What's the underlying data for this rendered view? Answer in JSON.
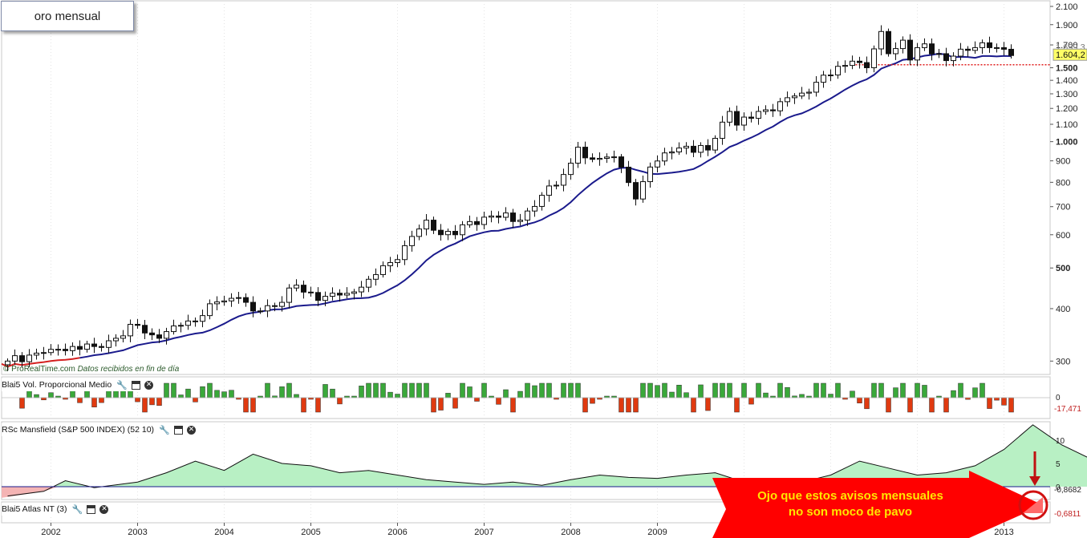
{
  "title": "oro mensual",
  "credit": {
    "source": "© ProRealTime.com",
    "note": "Datos recibidos en fin de día"
  },
  "colors": {
    "up": "#ffffff",
    "down": "#111111",
    "ma": "#1a1a8c",
    "ma_red": "#d42020",
    "vol_up": "#3aa83a",
    "vol_down": "#e03a10",
    "rsc_fill": "#b8f0c4",
    "callout": "#ff0000",
    "callout_text": "#ffe600"
  },
  "panels": {
    "volume": {
      "label": "Blai5 Vol. Proporcional Medio",
      "zero_tick": "0",
      "last_value": "-17,471"
    },
    "mansfield": {
      "label": "RSc Mansfield (S&P 500 INDEX) (52 10)",
      "ticks": [
        "10",
        "5",
        "0"
      ],
      "last_value": "-0,8682"
    },
    "atlas": {
      "label": "Blai5 Atlas NT (3)",
      "last_value": "-0,6811"
    }
  },
  "callout": {
    "line1": "Ojo que estos avisos mensuales",
    "line2": "no son moco de pavo"
  },
  "price_labels": {
    "last": "1.604,2",
    "ma_value": "1.659,3",
    "support": "1.525"
  },
  "chart_data": {
    "type": "candlestick",
    "title": "oro mensual",
    "scale": "log",
    "ylim": [
      285,
      2100
    ],
    "y_ticks": [
      {
        "v": 2100,
        "label": "2.100",
        "bold": false
      },
      {
        "v": 1900,
        "label": "1.900",
        "bold": false
      },
      {
        "v": 1700,
        "label": "1.700",
        "bold": false
      },
      {
        "v": 1500,
        "label": "1.500",
        "bold": true
      },
      {
        "v": 1400,
        "label": "1.400",
        "bold": false
      },
      {
        "v": 1300,
        "label": "1.300",
        "bold": false
      },
      {
        "v": 1200,
        "label": "1.200",
        "bold": false
      },
      {
        "v": 1100,
        "label": "1.100",
        "bold": false
      },
      {
        "v": 1000,
        "label": "1.000",
        "bold": true
      },
      {
        "v": 900,
        "label": "900",
        "bold": false
      },
      {
        "v": 800,
        "label": "800",
        "bold": false
      },
      {
        "v": 700,
        "label": "700",
        "bold": false
      },
      {
        "v": 600,
        "label": "600",
        "bold": false
      },
      {
        "v": 500,
        "label": "500",
        "bold": true
      },
      {
        "v": 400,
        "label": "400",
        "bold": false
      },
      {
        "v": 300,
        "label": "300",
        "bold": false
      }
    ],
    "x_labels": [
      "2002",
      "2003",
      "2004",
      "2005",
      "2006",
      "2007",
      "2008",
      "2009",
      "2010",
      "2011",
      "2012",
      "2013"
    ],
    "start": "2001-07",
    "anchors": [
      [
        "2001-07",
        300
      ],
      [
        "2001-10",
        310
      ],
      [
        "2002-01",
        320
      ],
      [
        "2002-04",
        325
      ],
      [
        "2002-07",
        325
      ],
      [
        "2002-10",
        340
      ],
      [
        "2003-01",
        365
      ],
      [
        "2003-02",
        350
      ],
      [
        "2003-04",
        340
      ],
      [
        "2003-07",
        365
      ],
      [
        "2003-10",
        385
      ],
      [
        "2003-12",
        415
      ],
      [
        "2004-03",
        425
      ],
      [
        "2004-05",
        395
      ],
      [
        "2004-08",
        405
      ],
      [
        "2004-11",
        455
      ],
      [
        "2004-12",
        438
      ],
      [
        "2005-03",
        428
      ],
      [
        "2005-06",
        435
      ],
      [
        "2005-09",
        470
      ],
      [
        "2005-12",
        515
      ],
      [
        "2006-02",
        565
      ],
      [
        "2006-05",
        650
      ],
      [
        "2006-06",
        615
      ],
      [
        "2006-09",
        600
      ],
      [
        "2006-11",
        645
      ],
      [
        "2007-02",
        665
      ],
      [
        "2007-06",
        650
      ],
      [
        "2007-09",
        745
      ],
      [
        "2007-12",
        835
      ],
      [
        "2008-02",
        970
      ],
      [
        "2008-03",
        915
      ],
      [
        "2008-07",
        920
      ],
      [
        "2008-10",
        730
      ],
      [
        "2008-12",
        870
      ],
      [
        "2009-02",
        940
      ],
      [
        "2009-05",
        975
      ],
      [
        "2009-08",
        955
      ],
      [
        "2009-11",
        1180
      ],
      [
        "2009-12",
        1095
      ],
      [
        "2010-06",
        1245
      ],
      [
        "2010-09",
        1305
      ],
      [
        "2010-11",
        1385
      ],
      [
        "2011-04",
        1555
      ],
      [
        "2011-06",
        1500
      ],
      [
        "2011-08",
        1830
      ],
      [
        "2011-09",
        1620
      ],
      [
        "2011-11",
        1745
      ],
      [
        "2011-12",
        1565
      ],
      [
        "2012-02",
        1710
      ],
      [
        "2012-05",
        1560
      ],
      [
        "2012-08",
        1650
      ],
      [
        "2012-10",
        1720
      ],
      [
        "2012-12",
        1675
      ],
      [
        "2013-01",
        1660
      ],
      [
        "2013-02",
        1604
      ]
    ],
    "ma_period": 10,
    "last_close": 1604.2,
    "ma_last": 1659.3,
    "support_level": 1525
  }
}
